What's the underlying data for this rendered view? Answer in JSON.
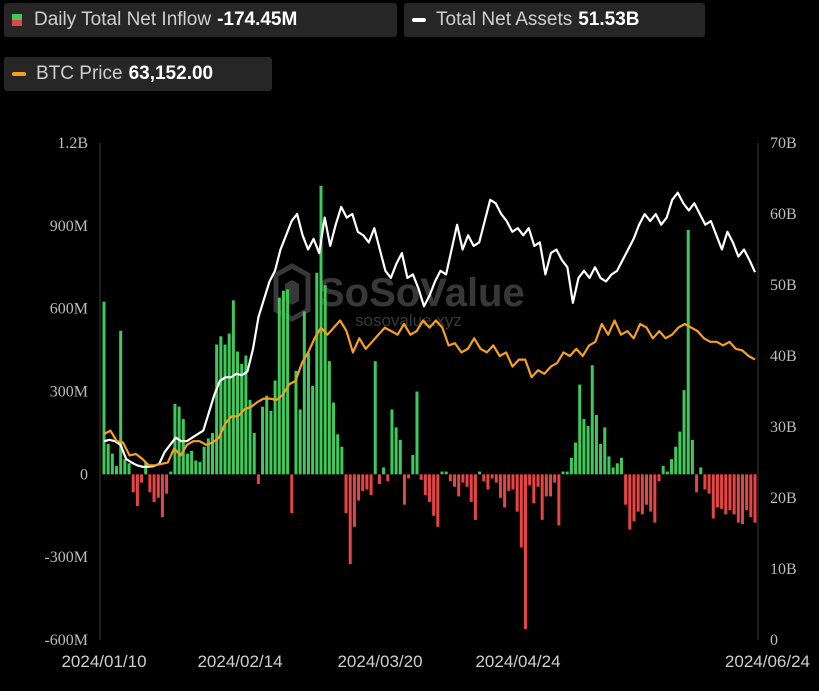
{
  "legend": {
    "inflow": {
      "label": "Daily Total Net Inflow",
      "value": "-174.45M"
    },
    "assets": {
      "label": "Total Net Assets",
      "value": "51.53B"
    },
    "btc": {
      "label": "BTC Price",
      "value": "63,152.00"
    }
  },
  "watermark": {
    "brand": "SoSoValue",
    "url": "sosovalue.xyz"
  },
  "colors": {
    "positive": "#3fc95a",
    "negative": "#e64545",
    "assets_line": "#ffffff",
    "btc_line": "#f5a023",
    "background": "#000000"
  },
  "chart_data": {
    "type": "bar",
    "x_tick_labels": [
      "2024/01/10",
      "2024/02/14",
      "2024/03/20",
      "2024/04/24",
      "2024/06/24"
    ],
    "left_axis": {
      "ticks": [
        "1.2B",
        "900M",
        "600M",
        "300M",
        "0",
        "-300M",
        "-600M"
      ],
      "ylim": [
        -600,
        1200
      ],
      "unit": "M"
    },
    "right_axis": {
      "ticks": [
        "70B",
        "60B",
        "50B",
        "40B",
        "30B",
        "20B",
        "10B",
        "0"
      ],
      "ylim": [
        0,
        70
      ],
      "unit": "B"
    },
    "grid": false,
    "series": [
      {
        "kind": "bar",
        "axis": "left",
        "values": [
          625,
          110,
          75,
          30,
          520,
          55,
          40,
          -65,
          -115,
          -30,
          45,
          -65,
          -100,
          -85,
          -155,
          -70,
          10,
          255,
          245,
          200,
          75,
          85,
          50,
          45,
          100,
          130,
          150,
          470,
          500,
          470,
          510,
          630,
          445,
          400,
          430,
          270,
          150,
          -35,
          245,
          285,
          230,
          340,
          640,
          665,
          670,
          -140,
          375,
          235,
          590,
          440,
          320,
          730,
          1045,
          685,
          410,
          260,
          145,
          100,
          -140,
          -325,
          -190,
          -95,
          -60,
          -55,
          -75,
          410,
          -35,
          25,
          -25,
          235,
          170,
          125,
          -110,
          -15,
          70,
          300,
          -20,
          -75,
          -100,
          -150,
          -190,
          10,
          10,
          -25,
          -45,
          -80,
          -30,
          -45,
          -100,
          -165,
          10,
          -25,
          -55,
          -15,
          -30,
          -85,
          -120,
          -60,
          -55,
          -135,
          -265,
          -560,
          -40,
          -105,
          -45,
          -165,
          -80,
          -80,
          -30,
          -185,
          10,
          10,
          60,
          115,
          325,
          200,
          175,
          395,
          215,
          110,
          170,
          65,
          25,
          40,
          60,
          -110,
          -200,
          -170,
          -135,
          -145,
          -110,
          -135,
          -175,
          -25,
          30,
          10,
          55,
          100,
          155,
          305,
          885,
          125,
          -65,
          25,
          -55,
          -70,
          -160,
          -120,
          -125,
          -145,
          -130,
          -145,
          -175,
          -180,
          -130,
          -155,
          -175
        ]
      },
      {
        "kind": "line",
        "name": "Total Net Assets",
        "axis": "right",
        "values": [
          28.0,
          28.2,
          28.0,
          27.5,
          25.5,
          25.0,
          24.6,
          24.4,
          24.4,
          24.5,
          24.8,
          26.5,
          27.5,
          28.5,
          28.0,
          28.0,
          28.5,
          29.0,
          29.5,
          32.0,
          34.5,
          36.5,
          37.0,
          37.0,
          37.5,
          37.3,
          37.8,
          41.0,
          45.5,
          48.0,
          50.5,
          52.0,
          55.0,
          57.0,
          59.0,
          60.0,
          57.0,
          55.0,
          56.5,
          54.5,
          59.5,
          55.5,
          58.5,
          61.0,
          59.5,
          60.0,
          57.5,
          57.0,
          56.0,
          58.0,
          55.0,
          52.0,
          51.0,
          53.0,
          54.5,
          51.0,
          51.5,
          49.5,
          47.0,
          48.5,
          50.5,
          52.0,
          51.5,
          55.0,
          58.5,
          55.0,
          57.0,
          55.5,
          56.0,
          59.0,
          62.0,
          61.5,
          60.0,
          59.0,
          57.5,
          58.0,
          57.0,
          58.0,
          55.5,
          56.0,
          51.5,
          54.5,
          55.0,
          53.5,
          52.5,
          47.5,
          51.0,
          52.0,
          51.0,
          52.5,
          51.0,
          50.5,
          51.5,
          52.0,
          53.5,
          55.0,
          56.5,
          58.5,
          60.0,
          59.0,
          60.0,
          58.5,
          59.5,
          62.0,
          63.0,
          61.5,
          60.5,
          61.5,
          60.0,
          58.5,
          59.0,
          57.0,
          55.0,
          57.5,
          56.0,
          54.0,
          55.0,
          53.5,
          51.8
        ]
      },
      {
        "kind": "line",
        "name": "BTC Price",
        "axis": "right",
        "values": [
          29.0,
          29.5,
          28.0,
          27.8,
          26.0,
          26.2,
          25.5,
          24.6,
          24.6,
          24.8,
          25.0,
          27.0,
          26.0,
          27.5,
          28.0,
          28.0,
          27.5,
          27.8,
          28.5,
          30.5,
          31.5,
          31.5,
          32.5,
          32.8,
          33.5,
          34.0,
          34.0,
          33.8,
          34.5,
          36.0,
          36.5,
          39.0,
          40.5,
          42.5,
          44.0,
          43.0,
          44.0,
          45.0,
          43.5,
          40.5,
          42.5,
          41.0,
          42.0,
          43.0,
          44.0,
          43.5,
          43.0,
          44.5,
          43.0,
          43.5,
          45.0,
          44.0,
          45.0,
          44.0,
          41.5,
          41.8,
          40.5,
          41.0,
          42.5,
          41.0,
          40.5,
          41.5,
          40.0,
          40.5,
          38.5,
          39.5,
          39.5,
          37.0,
          38.0,
          37.5,
          38.5,
          39.0,
          40.5,
          40.0,
          41.0,
          40.0,
          41.5,
          42.0,
          44.5,
          43.0,
          45.0,
          43.0,
          43.5,
          42.5,
          44.5,
          44.0,
          42.5,
          43.5,
          42.5,
          43.0,
          44.0,
          44.5,
          44.0,
          43.5,
          42.5,
          42.0,
          42.0,
          41.5,
          42.0,
          41.0,
          40.8,
          40.0,
          39.5
        ]
      }
    ]
  }
}
